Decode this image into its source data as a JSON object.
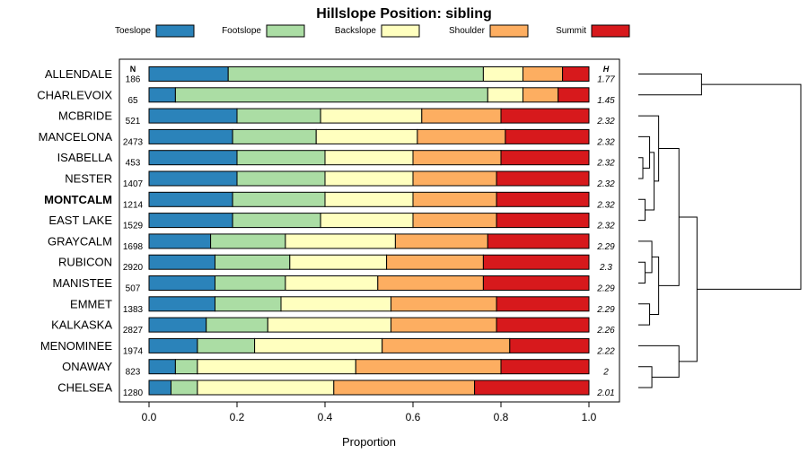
{
  "chart_data": {
    "type": "bar",
    "orientation": "horizontal",
    "stacked": true,
    "title": "Hillslope Position: sibling",
    "xlabel": "Proportion",
    "ylabel": "",
    "xlim": [
      0,
      1
    ],
    "xticks": [
      0.0,
      0.2,
      0.4,
      0.6,
      0.8,
      1.0
    ],
    "xtick_labels": [
      "0.0",
      "0.2",
      "0.4",
      "0.6",
      "0.8",
      "1.0"
    ],
    "legend_position": "top",
    "n_header": "N",
    "h_header": "H",
    "categories": [
      "ALLENDALE",
      "CHARLEVOIX",
      "MCBRIDE",
      "MANCELONA",
      "ISABELLA",
      "NESTER",
      "MONTCALM",
      "EAST LAKE",
      "GRAYCALM",
      "RUBICON",
      "MANISTEE",
      "EMMET",
      "KALKASKA",
      "MENOMINEE",
      "ONAWAY",
      "CHELSEA"
    ],
    "highlight": "MONTCALM",
    "n": [
      "186",
      "65",
      "521",
      "2473",
      "453",
      "1407",
      "1214",
      "1529",
      "1698",
      "2920",
      "507",
      "1383",
      "2827",
      "1974",
      "823",
      "1280"
    ],
    "h": [
      "1.77",
      "1.45",
      "2.32",
      "2.32",
      "2.32",
      "2.32",
      "2.32",
      "2.32",
      "2.29",
      "2.3",
      "2.29",
      "2.29",
      "2.26",
      "2.22",
      "2",
      "2.01"
    ],
    "series": [
      {
        "name": "Toeslope",
        "color": "#2b83ba",
        "values": [
          0.18,
          0.06,
          0.2,
          0.19,
          0.2,
          0.2,
          0.19,
          0.19,
          0.14,
          0.15,
          0.15,
          0.15,
          0.13,
          0.11,
          0.06,
          0.05
        ]
      },
      {
        "name": "Footslope",
        "color": "#abdda4",
        "values": [
          0.58,
          0.71,
          0.19,
          0.19,
          0.2,
          0.2,
          0.21,
          0.2,
          0.17,
          0.17,
          0.16,
          0.15,
          0.14,
          0.13,
          0.05,
          0.06
        ]
      },
      {
        "name": "Backslope",
        "color": "#ffffbf",
        "values": [
          0.09,
          0.08,
          0.23,
          0.23,
          0.2,
          0.2,
          0.2,
          0.21,
          0.25,
          0.22,
          0.21,
          0.25,
          0.28,
          0.29,
          0.36,
          0.31
        ]
      },
      {
        "name": "Shoulder",
        "color": "#fdae61",
        "values": [
          0.09,
          0.08,
          0.18,
          0.2,
          0.2,
          0.19,
          0.19,
          0.19,
          0.21,
          0.22,
          0.24,
          0.24,
          0.24,
          0.29,
          0.33,
          0.32
        ]
      },
      {
        "name": "Summit",
        "color": "#d7191c",
        "values": [
          0.06,
          0.07,
          0.2,
          0.19,
          0.2,
          0.21,
          0.21,
          0.21,
          0.23,
          0.24,
          0.24,
          0.21,
          0.21,
          0.18,
          0.2,
          0.26
        ]
      }
    ],
    "dendrogram": [
      {
        "a": 0,
        "b": 1,
        "height": 0.28
      },
      {
        "a": 4,
        "b": 5,
        "height": 0.02
      },
      {
        "a": 6,
        "b": 7,
        "height": 0.03
      },
      {
        "a": 3,
        "b": "n1",
        "height": 0.05
      },
      {
        "a": "n3",
        "b": "n2",
        "height": 0.07
      },
      {
        "a": 2,
        "b": "n4",
        "height": 0.09
      },
      {
        "a": 9,
        "b": 10,
        "height": 0.03
      },
      {
        "a": 8,
        "b": "n6",
        "height": 0.06
      },
      {
        "a": 11,
        "b": 12,
        "height": 0.05
      },
      {
        "a": "n7",
        "b": "n8",
        "height": 0.09
      },
      {
        "a": "n5",
        "b": "n9",
        "height": 0.18
      },
      {
        "a": 14,
        "b": 15,
        "height": 0.06
      },
      {
        "a": 13,
        "b": "n11",
        "height": 0.18
      },
      {
        "a": "n10",
        "b": "n12",
        "height": 0.26
      },
      {
        "a": "n0",
        "b": "n13",
        "height": 0.72
      }
    ]
  }
}
